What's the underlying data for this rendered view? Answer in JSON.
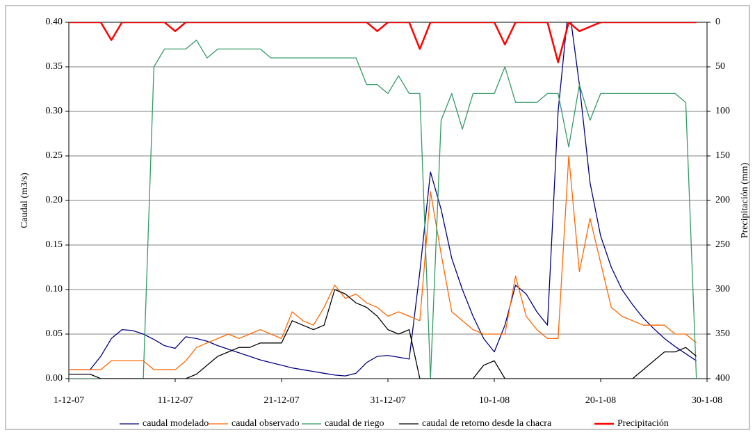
{
  "chart_data": {
    "type": "line",
    "y_label": "Caudal (m3/s)",
    "y2_label": "Precipitación (mm)",
    "x": [
      "2007-12-01",
      "2007-12-02",
      "2007-12-03",
      "2007-12-04",
      "2007-12-05",
      "2007-12-06",
      "2007-12-07",
      "2007-12-08",
      "2007-12-09",
      "2007-12-10",
      "2007-12-11",
      "2007-12-12",
      "2007-12-13",
      "2007-12-14",
      "2007-12-15",
      "2007-12-16",
      "2007-12-17",
      "2007-12-18",
      "2007-12-19",
      "2007-12-20",
      "2007-12-21",
      "2007-12-22",
      "2007-12-23",
      "2007-12-24",
      "2007-12-25",
      "2007-12-26",
      "2007-12-27",
      "2007-12-28",
      "2007-12-29",
      "2007-12-30",
      "2007-12-31",
      "2008-01-01",
      "2008-01-02",
      "2008-01-03",
      "2008-01-04",
      "2008-01-05",
      "2008-01-06",
      "2008-01-07",
      "2008-01-08",
      "2008-01-09",
      "2008-01-10",
      "2008-01-11",
      "2008-01-12",
      "2008-01-13",
      "2008-01-14",
      "2008-01-15",
      "2008-01-16",
      "2008-01-17",
      "2008-01-18",
      "2008-01-19",
      "2008-01-20",
      "2008-01-21",
      "2008-01-22",
      "2008-01-23",
      "2008-01-24",
      "2008-01-25",
      "2008-01-26",
      "2008-01-27",
      "2008-01-28",
      "2008-01-29"
    ],
    "xlim": [
      "2007-12-01",
      "2008-01-30"
    ],
    "xticks": [
      {
        "value": "2007-12-01",
        "label": "1-12-07"
      },
      {
        "value": "2007-12-11",
        "label": "11-12-07"
      },
      {
        "value": "2007-12-21",
        "label": "21-12-07"
      },
      {
        "value": "2007-12-31",
        "label": "31-12-07"
      },
      {
        "value": "2008-01-10",
        "label": "10-1-08"
      },
      {
        "value": "2008-01-20",
        "label": "20-1-08"
      },
      {
        "value": "2008-01-30",
        "label": "30-1-08"
      }
    ],
    "ylim": [
      0,
      0.4
    ],
    "yticks": [
      {
        "value": 0,
        "label": "0.00"
      },
      {
        "value": 0.05,
        "label": "0.05"
      },
      {
        "value": 0.1,
        "label": "0.10"
      },
      {
        "value": 0.15,
        "label": "0.15"
      },
      {
        "value": 0.2,
        "label": "0.20"
      },
      {
        "value": 0.25,
        "label": "0.25"
      },
      {
        "value": 0.3,
        "label": "0.30"
      },
      {
        "value": 0.35,
        "label": "0.35"
      },
      {
        "value": 0.4,
        "label": "0.40"
      }
    ],
    "y2lim": [
      400,
      0
    ],
    "y2ticks": [
      0,
      50,
      100,
      150,
      200,
      250,
      300,
      350,
      400
    ],
    "grid": true,
    "legend": "bottom",
    "series": [
      {
        "name": "caudal modelado",
        "color": "#000080",
        "values": [
          0.01,
          0.01,
          0.01,
          0.025,
          0.045,
          0.055,
          0.054,
          0.05,
          0.044,
          0.037,
          0.034,
          0.047,
          0.045,
          0.042,
          0.037,
          0.033,
          0.029,
          0.025,
          0.021,
          0.018,
          0.015,
          0.012,
          0.01,
          0.008,
          0.006,
          0.004,
          0.003,
          0.006,
          0.018,
          0.025,
          0.026,
          0.024,
          0.022,
          0.12,
          0.232,
          0.19,
          0.135,
          0.1,
          0.07,
          0.045,
          0.03,
          0.06,
          0.105,
          0.095,
          0.075,
          0.06,
          0.3,
          0.42,
          0.33,
          0.22,
          0.16,
          0.125,
          0.1,
          0.083,
          0.068,
          0.056,
          0.045,
          0.036,
          0.028,
          0.02
        ]
      },
      {
        "name": "caudal observado",
        "color": "#ff6600",
        "values": [
          0.01,
          0.01,
          0.01,
          0.01,
          0.02,
          0.02,
          0.02,
          0.02,
          0.01,
          0.01,
          0.01,
          0.02,
          0.035,
          0.04,
          0.045,
          0.05,
          0.045,
          0.05,
          0.055,
          0.05,
          0.045,
          0.075,
          0.065,
          0.06,
          0.08,
          0.105,
          0.09,
          0.095,
          0.085,
          0.08,
          0.07,
          0.075,
          0.07,
          0.065,
          0.21,
          0.14,
          0.075,
          0.065,
          0.055,
          0.05,
          0.05,
          0.05,
          0.115,
          0.07,
          0.055,
          0.045,
          0.045,
          0.25,
          0.12,
          0.18,
          0.13,
          0.08,
          0.07,
          0.065,
          0.06,
          0.06,
          0.06,
          0.05,
          0.05,
          0.04
        ]
      },
      {
        "name": "caudal de riego",
        "color": "#339966",
        "values": [
          0,
          0,
          0,
          0,
          0,
          0,
          0,
          0,
          0.35,
          0.37,
          0.37,
          0.37,
          0.38,
          0.36,
          0.37,
          0.37,
          0.37,
          0.37,
          0.37,
          0.36,
          0.36,
          0.36,
          0.36,
          0.36,
          0.36,
          0.36,
          0.36,
          0.36,
          0.33,
          0.33,
          0.32,
          0.34,
          0.32,
          0.32,
          0,
          0.29,
          0.32,
          0.28,
          0.32,
          0.32,
          0.32,
          0.35,
          0.31,
          0.31,
          0.31,
          0.32,
          0.32,
          0.26,
          0.33,
          0.29,
          0.32,
          0.32,
          0.32,
          0.32,
          0.32,
          0.32,
          0.32,
          0.32,
          0.31,
          0
        ]
      },
      {
        "name": "caudal de retorno desde la chacra",
        "color": "#000000",
        "values": [
          0.005,
          0.005,
          0.005,
          0,
          0,
          0,
          0,
          0,
          0,
          0,
          0,
          0,
          0.005,
          0.015,
          0.025,
          0.03,
          0.035,
          0.035,
          0.04,
          0.04,
          0.04,
          0.065,
          0.06,
          0.055,
          0.06,
          0.1,
          0.095,
          0.085,
          0.08,
          0.07,
          0.055,
          0.05,
          0.055,
          0,
          0,
          0,
          0,
          0,
          0,
          0.015,
          0.02,
          0,
          0,
          0,
          0,
          0,
          0,
          0,
          0,
          0,
          0,
          0,
          0,
          0,
          0.01,
          0.02,
          0.03,
          0.03,
          0.035,
          0.025
        ]
      },
      {
        "name": "Precipitación",
        "color": "#ff0000",
        "axis": "y2",
        "values": [
          0,
          0,
          0,
          0,
          20,
          0,
          0,
          0,
          0,
          0,
          10,
          0,
          0,
          0,
          0,
          0,
          0,
          0,
          0,
          0,
          0,
          0,
          0,
          0,
          0,
          0,
          0,
          0,
          0,
          10,
          0,
          0,
          0,
          30,
          0,
          0,
          0,
          0,
          0,
          0,
          0,
          25,
          0,
          0,
          0,
          0,
          45,
          0,
          10,
          5,
          0,
          0,
          0,
          0,
          0,
          0,
          0,
          0,
          0,
          0
        ]
      }
    ]
  }
}
